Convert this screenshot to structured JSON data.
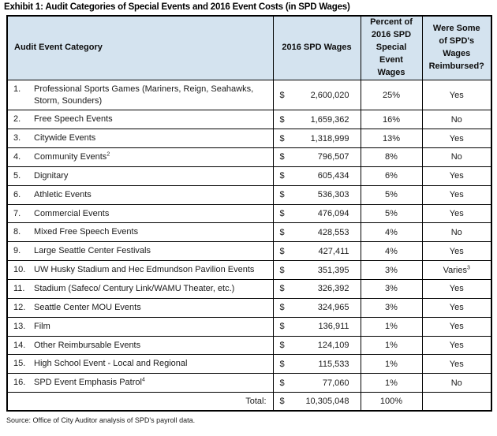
{
  "title": "Exhibit 1: Audit Categories of Special Events and 2016 Event Costs (in SPD Wages)",
  "currency": "$",
  "columns": {
    "category": "Audit Event Category",
    "wages": "2016 SPD Wages",
    "percent": "Percent of 2016 SPD Special Event Wages",
    "reimbursed": "Were Some of SPD's Wages Reimbursed?"
  },
  "rows": [
    {
      "num": "1.",
      "category": "Professional Sports Games (Mariners, Reign, Seahawks, Storm, Sounders)",
      "category_sup": "",
      "wages": "2,600,020",
      "percent": "25%",
      "reimbursed": "Yes",
      "reimbursed_sup": ""
    },
    {
      "num": "2.",
      "category": "Free Speech Events",
      "category_sup": "",
      "wages": "1,659,362",
      "percent": "16%",
      "reimbursed": "No",
      "reimbursed_sup": ""
    },
    {
      "num": "3.",
      "category": "Citywide Events",
      "category_sup": "",
      "wages": "1,318,999",
      "percent": "13%",
      "reimbursed": "Yes",
      "reimbursed_sup": ""
    },
    {
      "num": "4.",
      "category": "Community Events",
      "category_sup": "2",
      "wages": "796,507",
      "percent": "8%",
      "reimbursed": "No",
      "reimbursed_sup": ""
    },
    {
      "num": "5.",
      "category": "Dignitary",
      "category_sup": "",
      "wages": "605,434",
      "percent": "6%",
      "reimbursed": "Yes",
      "reimbursed_sup": ""
    },
    {
      "num": "6.",
      "category": "Athletic Events",
      "category_sup": "",
      "wages": "536,303",
      "percent": "5%",
      "reimbursed": "Yes",
      "reimbursed_sup": ""
    },
    {
      "num": "7.",
      "category": "Commercial Events",
      "category_sup": "",
      "wages": "476,094",
      "percent": "5%",
      "reimbursed": "Yes",
      "reimbursed_sup": ""
    },
    {
      "num": "8.",
      "category": "Mixed Free Speech Events",
      "category_sup": "",
      "wages": "428,553",
      "percent": "4%",
      "reimbursed": "No",
      "reimbursed_sup": ""
    },
    {
      "num": "9.",
      "category": "Large Seattle Center Festivals",
      "category_sup": "",
      "wages": "427,411",
      "percent": "4%",
      "reimbursed": "Yes",
      "reimbursed_sup": ""
    },
    {
      "num": "10.",
      "category": "UW Husky Stadium and Hec Edmundson Pavilion Events",
      "category_sup": "",
      "wages": "351,395",
      "percent": "3%",
      "reimbursed": "Varies",
      "reimbursed_sup": "3"
    },
    {
      "num": "11.",
      "category": "Stadium (Safeco/ Century Link/WAMU Theater, etc.)",
      "category_sup": "",
      "wages": "326,392",
      "percent": "3%",
      "reimbursed": "Yes",
      "reimbursed_sup": ""
    },
    {
      "num": "12.",
      "category": "Seattle Center MOU Events",
      "category_sup": "",
      "wages": "324,965",
      "percent": "3%",
      "reimbursed": "Yes",
      "reimbursed_sup": ""
    },
    {
      "num": "13.",
      "category": "Film",
      "category_sup": "",
      "wages": "136,911",
      "percent": "1%",
      "reimbursed": "Yes",
      "reimbursed_sup": ""
    },
    {
      "num": "14.",
      "category": "Other Reimbursable Events",
      "category_sup": "",
      "wages": "124,109",
      "percent": "1%",
      "reimbursed": "Yes",
      "reimbursed_sup": ""
    },
    {
      "num": "15.",
      "category": "High School Event - Local and Regional",
      "category_sup": "",
      "wages": "115,533",
      "percent": "1%",
      "reimbursed": "Yes",
      "reimbursed_sup": ""
    },
    {
      "num": "16.",
      "category": "SPD Event Emphasis Patrol",
      "category_sup": "4",
      "wages": "77,060",
      "percent": "1%",
      "reimbursed": "No",
      "reimbursed_sup": ""
    }
  ],
  "total": {
    "label": "Total:",
    "wages": "10,305,048",
    "percent": "100%",
    "reimbursed": ""
  },
  "source": "Source: Office of City Auditor analysis of SPD's payroll data.",
  "colors": {
    "header_bg": "#d4e3ef",
    "border": "#000000",
    "text": "#1a1a1a"
  }
}
